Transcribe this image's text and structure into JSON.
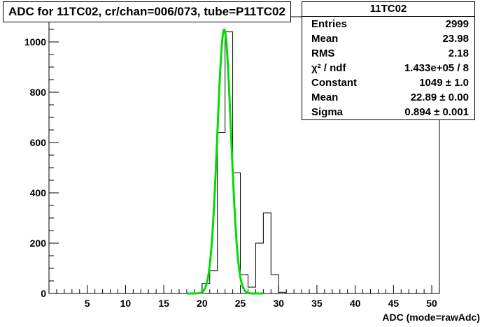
{
  "title": "ADC for 11TC02,  cr/chan=006/073,  tube=P11TC02",
  "stats": {
    "name": "11TC02",
    "rows": [
      {
        "label": "Entries",
        "value": "2999"
      },
      {
        "label": "Mean",
        "value": "23.98"
      },
      {
        "label": "RMS",
        "value": "2.18"
      },
      {
        "label": "χ² / ndf",
        "value": "1.433e+05 / 8"
      },
      {
        "label": "Constant",
        "value": "1049 ± 1.0"
      },
      {
        "label": "Mean",
        "value": "22.89 ± 0.00"
      },
      {
        "label": "Sigma",
        "value": "0.894 ± 0.001"
      }
    ]
  },
  "chart_data": {
    "type": "histogram",
    "title": "ADC for 11TC02,  cr/chan=006/073,  tube=P11TC02",
    "xlabel": "ADC (mode=rawAdc)",
    "ylabel": "",
    "xlim": [
      0,
      51
    ],
    "ylim": [
      0,
      1100
    ],
    "xticks": [
      5,
      10,
      15,
      20,
      25,
      30,
      35,
      40,
      45,
      50
    ],
    "yticks": [
      0,
      200,
      400,
      600,
      800,
      1000
    ],
    "bin_width": 1,
    "bins": [
      {
        "x": 20,
        "count": 40
      },
      {
        "x": 21,
        "count": 90
      },
      {
        "x": 22,
        "count": 640
      },
      {
        "x": 23,
        "count": 1040
      },
      {
        "x": 24,
        "count": 480
      },
      {
        "x": 25,
        "count": 75
      },
      {
        "x": 26,
        "count": 25
      },
      {
        "x": 27,
        "count": 200
      },
      {
        "x": 28,
        "count": 320
      },
      {
        "x": 29,
        "count": 75
      },
      {
        "x": 30,
        "count": 5
      }
    ],
    "fit": {
      "function": "gaus",
      "constant": 1049,
      "mean": 22.89,
      "sigma": 0.894,
      "range": [
        18,
        28
      ],
      "color": "#00dd00"
    },
    "histogram_color": "#000000",
    "grid": false
  }
}
